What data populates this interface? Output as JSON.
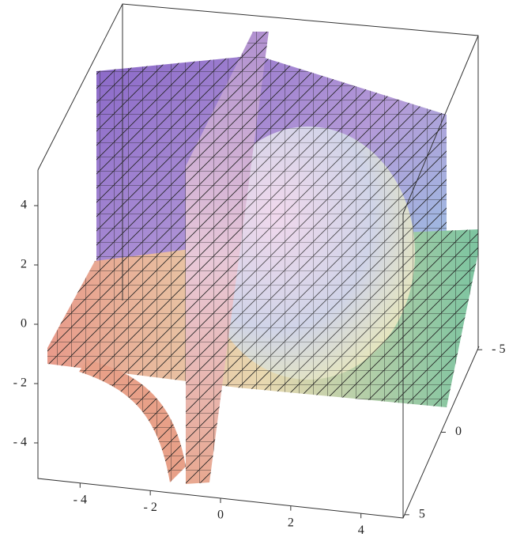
{
  "chart_data": {
    "type": "surface3d",
    "xlim": [
      -5.2,
      5.2
    ],
    "xticks": [
      {
        "value": -4,
        "label": "- 4"
      },
      {
        "value": -2,
        "label": "- 2"
      },
      0,
      2,
      4
    ],
    "ylim": [
      5.2,
      -5.2
    ],
    "yticks": [
      5,
      0,
      {
        "value": -5,
        "label": "- 5"
      }
    ],
    "zlim": [
      -5.2,
      5.2
    ],
    "zticks": [
      4,
      2,
      0,
      {
        "value": -2,
        "label": "- 2"
      },
      {
        "value": -4,
        "label": "- 4"
      }
    ]
  }
}
